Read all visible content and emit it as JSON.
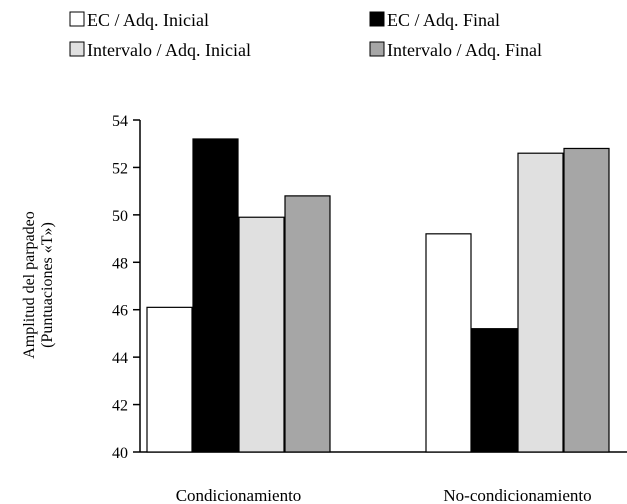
{
  "chart_data": {
    "type": "bar",
    "categories": [
      "Condicionamiento",
      "No-condicionamiento"
    ],
    "series": [
      {
        "name": "EC / Adq. Inicial",
        "color": "#ffffff",
        "values": [
          46.1,
          49.2
        ]
      },
      {
        "name": "EC / Adq. Final",
        "color": "#000000",
        "values": [
          53.2,
          45.2
        ]
      },
      {
        "name": "Intervalo / Adq. Inicial",
        "color": "#e0e0e0",
        "values": [
          49.9,
          52.6
        ]
      },
      {
        "name": "Intervalo / Adq. Final",
        "color": "#a6a6a6",
        "values": [
          50.8,
          52.8
        ]
      }
    ],
    "ylabel": "Amplitud del parpadeo",
    "ylabel2": "(Puntuaciones «T»)",
    "xlabel": "",
    "ylim": [
      40,
      54
    ],
    "yticks": [
      40,
      42,
      44,
      46,
      48,
      50,
      52,
      54
    ],
    "grid": false,
    "legend_position": "top"
  }
}
